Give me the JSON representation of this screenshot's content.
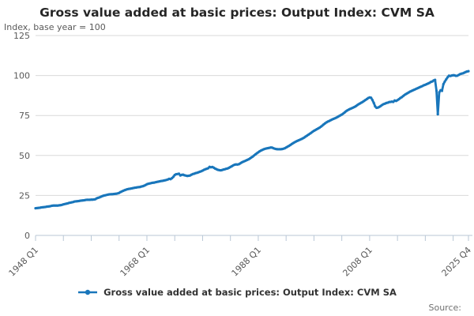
{
  "header": {
    "title": "Gross value added at basic prices: Output Index: CVM SA",
    "subtitle": "Index, base year = 100"
  },
  "footer": {
    "source_label": "Source:"
  },
  "colors": {
    "line": "#1976bb",
    "grid": "#d9d9d9",
    "axis": "#b9c7d6",
    "axis_text": "#595959",
    "title_text": "#262626",
    "legend_text": "#333333",
    "source_text": "#707070",
    "background": "#ffffff"
  },
  "chart_data": {
    "type": "line",
    "title": "Gross value added at basic prices: Output Index: CVM SA",
    "subtitle": "Index, base year = 100",
    "xlabel": "",
    "ylabel": "Index, base year = 100",
    "ylim": [
      0,
      125
    ],
    "y_ticks": [
      0,
      25,
      50,
      75,
      100,
      125
    ],
    "grid": true,
    "legend_position": "bottom",
    "x_unit": "quarter",
    "x_start_label": "1948 Q1",
    "x_end_label": "2025 Q4",
    "x_tick_labels": [
      "1948 Q1",
      "1968 Q1",
      "1988 Q1",
      "2008 Q1",
      "2025 Q4"
    ],
    "x_labeled_quarters": [
      0,
      80,
      160,
      240,
      311
    ],
    "minor_tick_interval_quarters": 20,
    "series": [
      {
        "name": "Gross value added at basic prices: Output Index: CVM SA",
        "color": "#1976bb",
        "values": [
          17.0,
          17.1,
          17.2,
          17.3,
          17.5,
          17.6,
          17.7,
          17.8,
          18.0,
          18.1,
          18.2,
          18.4,
          18.6,
          18.7,
          18.7,
          18.7,
          18.7,
          18.8,
          18.9,
          19.1,
          19.4,
          19.6,
          19.8,
          20.0,
          20.3,
          20.5,
          20.7,
          20.9,
          21.2,
          21.3,
          21.4,
          21.5,
          21.7,
          21.8,
          21.9,
          22.0,
          22.2,
          22.3,
          22.3,
          22.3,
          22.4,
          22.4,
          22.5,
          22.7,
          23.2,
          23.5,
          23.8,
          24.2,
          24.6,
          24.9,
          25.1,
          25.3,
          25.5,
          25.7,
          25.8,
          25.8,
          25.9,
          26.0,
          26.1,
          26.3,
          26.6,
          27.1,
          27.5,
          27.9,
          28.3,
          28.6,
          28.9,
          29.1,
          29.2,
          29.4,
          29.6,
          29.8,
          29.9,
          30.1,
          30.2,
          30.3,
          30.6,
          30.8,
          31.1,
          31.5,
          32.0,
          32.3,
          32.5,
          32.7,
          32.9,
          33.0,
          33.2,
          33.4,
          33.6,
          33.8,
          34.0,
          34.1,
          34.3,
          34.5,
          34.7,
          35.0,
          35.4,
          35.2,
          35.8,
          36.6,
          37.8,
          38.3,
          38.4,
          38.6,
          37.5,
          37.9,
          38.0,
          37.6,
          37.4,
          37.2,
          37.3,
          37.5,
          38.0,
          38.4,
          38.6,
          39.0,
          39.2,
          39.5,
          39.8,
          40.1,
          40.5,
          41.0,
          41.4,
          41.7,
          42.0,
          42.9,
          42.6,
          42.8,
          42.4,
          41.8,
          41.4,
          41.0,
          40.8,
          40.7,
          40.9,
          41.2,
          41.4,
          41.7,
          41.9,
          42.3,
          42.8,
          43.3,
          43.8,
          44.2,
          44.4,
          44.3,
          44.5,
          45.0,
          45.6,
          46.0,
          46.4,
          46.8,
          47.2,
          47.6,
          48.1,
          48.7,
          49.3,
          50.0,
          50.7,
          51.4,
          52.0,
          52.6,
          53.1,
          53.5,
          53.9,
          54.2,
          54.4,
          54.6,
          54.8,
          55.0,
          54.9,
          54.5,
          54.2,
          54.0,
          53.9,
          53.9,
          53.9,
          54.0,
          54.2,
          54.5,
          55.0,
          55.5,
          56.0,
          56.5,
          57.1,
          57.7,
          58.2,
          58.7,
          59.1,
          59.5,
          59.9,
          60.3,
          60.7,
          61.2,
          61.8,
          62.4,
          63.0,
          63.6,
          64.2,
          64.8,
          65.4,
          65.9,
          66.4,
          66.9,
          67.4,
          68.0,
          68.7,
          69.4,
          70.1,
          70.7,
          71.2,
          71.6,
          72.1,
          72.5,
          72.9,
          73.2,
          73.6,
          74.1,
          74.6,
          75.1,
          75.6,
          76.2,
          76.9,
          77.6,
          78.2,
          78.7,
          79.1,
          79.5,
          79.9,
          80.3,
          80.8,
          81.4,
          82.0,
          82.5,
          83.0,
          83.5,
          84.1,
          84.7,
          85.3,
          85.9,
          86.3,
          86.1,
          84.7,
          82.8,
          80.7,
          79.8,
          80.0,
          80.4,
          81.0,
          81.6,
          82.1,
          82.4,
          82.8,
          83.0,
          83.4,
          83.5,
          83.7,
          83.5,
          84.4,
          84.1,
          84.6,
          85.2,
          85.9,
          86.4,
          87.1,
          87.8,
          88.4,
          88.9,
          89.4,
          89.9,
          90.3,
          90.7,
          91.1,
          91.5,
          91.9,
          92.3,
          92.7,
          93.1,
          93.5,
          93.9,
          94.2,
          94.6,
          95.0,
          95.4,
          96.0,
          96.3,
          96.9,
          97.3,
          90.5,
          75.8,
          89.5,
          90.8,
          90.4,
          94.6,
          96.2,
          97.6,
          98.9,
          99.9,
          99.7,
          100.0,
          100.2,
          100.1,
          99.8,
          99.9,
          100.4,
          100.9,
          101.2,
          101.4,
          101.8,
          102.2,
          102.5,
          102.7
        ]
      }
    ]
  }
}
